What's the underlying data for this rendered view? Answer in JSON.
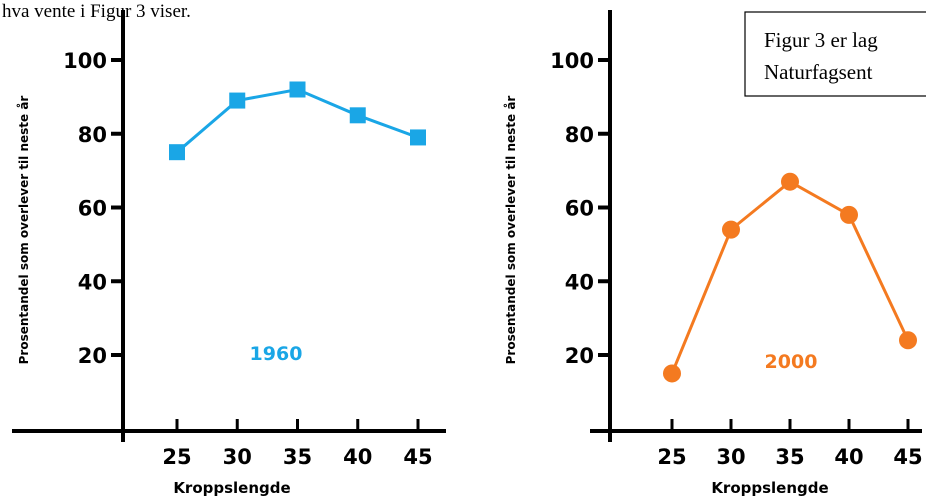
{
  "page": {
    "top_text": "hva vente i Figur 3 viser.",
    "note_text_line1": "Figur 3 er lag",
    "note_text_line2": "Naturfagsent"
  },
  "chart_data": [
    {
      "type": "line",
      "x": [
        25,
        30,
        35,
        40,
        45
      ],
      "y": [
        75,
        89,
        92,
        85,
        79
      ],
      "marker": "square",
      "color": "#1aa6e6",
      "annotation": "1960",
      "xlabel": "Kroppslengde",
      "ylabel": "Prosentandel som overlever til neste år",
      "yticks": [
        20,
        40,
        60,
        80,
        100
      ],
      "xticks": [
        25,
        30,
        35,
        40,
        45
      ],
      "ylim": [
        0,
        110
      ],
      "xlim": [
        18,
        47
      ]
    },
    {
      "type": "line",
      "x": [
        25,
        30,
        35,
        40,
        45
      ],
      "y": [
        15,
        54,
        67,
        58,
        24
      ],
      "marker": "circle",
      "color": "#f47a20",
      "annotation": "2000",
      "xlabel": "Kroppslengde",
      "ylabel": "Prosentandel som overlever til neste år",
      "yticks": [
        20,
        40,
        60,
        80,
        100
      ],
      "xticks": [
        25,
        30,
        35,
        40,
        45
      ],
      "ylim": [
        0,
        110
      ],
      "xlim": [
        18,
        47
      ]
    }
  ]
}
